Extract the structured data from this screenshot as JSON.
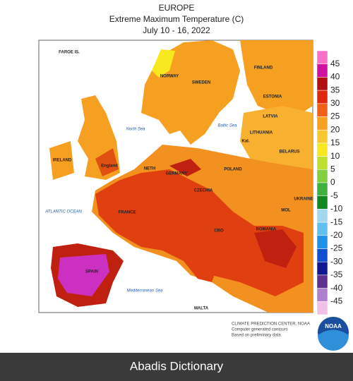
{
  "header": {
    "title": "EUROPE",
    "subtitle": "Extreme Maximum Temperature (C)",
    "date": "July 10 - 16, 2022"
  },
  "legend": {
    "labels": [
      45,
      40,
      35,
      30,
      25,
      20,
      15,
      10,
      5,
      0,
      -5,
      -10,
      -15,
      -20,
      -25,
      -30,
      -35,
      -40,
      -45
    ]
  },
  "map_labels": [
    "FAROE IS.",
    "NORWAY",
    "SWEDEN",
    "FINLAND",
    "ESTONIA",
    "LATVIA",
    "LITHUANIA",
    "BELARUS",
    "North Sea",
    "Baltic Sea",
    "Kal.",
    "IRELAND",
    "England",
    "NETH",
    "GERMANY",
    "POLAND",
    "CZECHIA",
    "UKRAINE",
    "MOL",
    "FRANCE",
    "ATLANTIC OCEAN",
    "CRO",
    "ROMANIA",
    "SPAIN",
    "Mediterranean Sea",
    "MALTA"
  ],
  "credits": [
    "CLIMATE PREDICTION CENTER, NOAA",
    "Computer generated contours",
    "Based on preliminary data"
  ],
  "logo": "NOAA",
  "footer": "Abadis Dictionary"
}
